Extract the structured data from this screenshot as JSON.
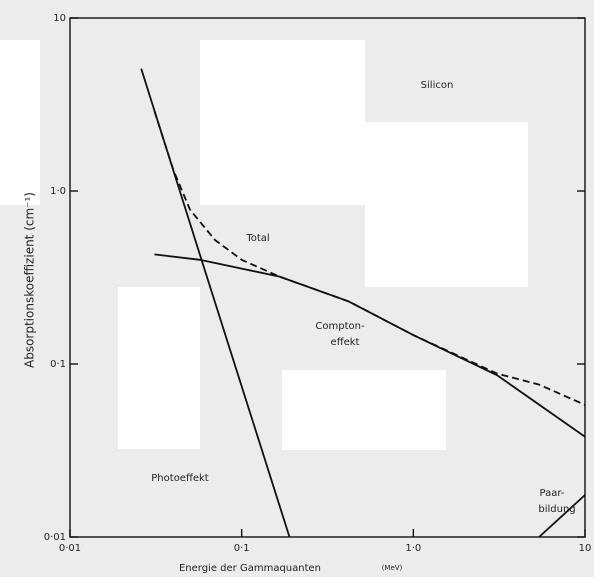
{
  "chart_data": {
    "type": "line",
    "annotation": "Silicon",
    "xlabel": "Energie der Gammaquanten",
    "xunit": "(MeV)",
    "ylabel": "Absorptionskoeffizient  (cm⁻¹)",
    "xscale": "log",
    "yscale": "log",
    "xlim": [
      0.01,
      10
    ],
    "ylim": [
      0.01,
      10
    ],
    "xticks": [
      {
        "value": 0.01,
        "label": "0·01"
      },
      {
        "value": 0.1,
        "label": "0·1"
      },
      {
        "value": 1,
        "label": "1·0"
      },
      10
    ],
    "yticks": [
      {
        "value": 0.01,
        "label": "0·01"
      },
      {
        "value": 0.1,
        "label": "0·1"
      },
      {
        "value": 1,
        "label": "1·0"
      },
      10
    ],
    "color": "#111111",
    "series": [
      {
        "label": [
          "Total"
        ],
        "dash": true,
        "x": [
          0.031,
          0.04,
          0.05,
          0.07,
          0.1,
          0.166,
          0.42,
          1,
          3.08,
          5.4,
          10
        ],
        "values": [
          2.9,
          1.32,
          0.78,
          0.52,
          0.4,
          0.32,
          0.23,
          0.147,
          0.088,
          0.076,
          0.058
        ]
      },
      {
        "label": [
          "Compton-",
          "effekt"
        ],
        "dash": false,
        "x": [
          0.031,
          0.057,
          0.166,
          0.42,
          1,
          3.08,
          10
        ],
        "values": [
          0.43,
          0.4,
          0.32,
          0.23,
          0.147,
          0.086,
          0.038
        ]
      },
      {
        "label": [
          "Photoeffekt"
        ],
        "dash": false,
        "x": [
          0.026,
          0.057,
          0.19
        ],
        "values": [
          5.1,
          0.43,
          0.01
        ]
      },
      {
        "label": [
          "Paar-",
          "bildung"
        ],
        "dash": false,
        "x": [
          5.4,
          10
        ],
        "values": [
          0.01,
          0.0175
        ]
      }
    ]
  }
}
